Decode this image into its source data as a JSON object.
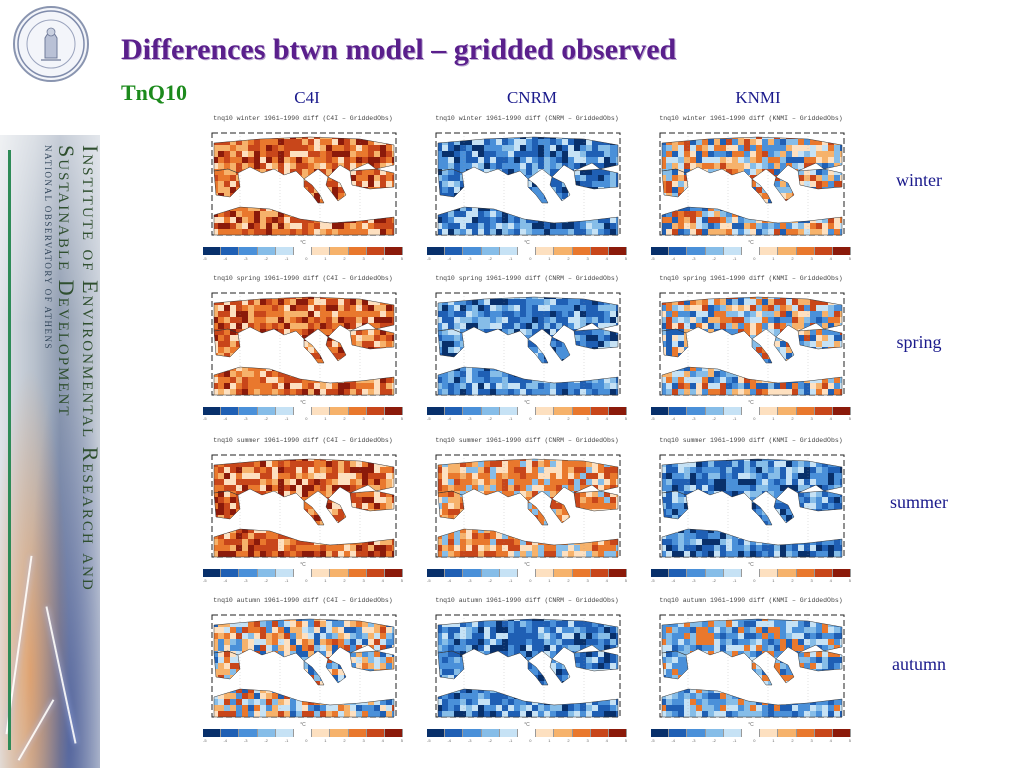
{
  "title": "Differences btwn model – gridded observed",
  "subtitle": "TnQ10",
  "sidebar": {
    "line1": "Institute of Environmental Research and",
    "line2": "Sustainable Development",
    "line3": "NATIONAL OBSERVATORY OF ATHENS"
  },
  "logo": {
    "icon": "observatory-seal-icon",
    "text": "NATIONAL OBSERVATORY OF ATHENS"
  },
  "columns": [
    "C4I",
    "CNRM",
    "KNMI"
  ],
  "rows": [
    "winter",
    "spring",
    "summer",
    "autumn"
  ],
  "panels": {
    "winter": [
      "tnq10 winter 1961–1990 diff (C4I – GriddedObs)",
      "tnq10 winter 1961–1990 diff (CNRM – GriddedObs)",
      "tnq10 winter 1961–1990 diff (KNMI – GriddedObs)"
    ],
    "spring": [
      "tnq10 spring 1961–1990 diff (C4I – GriddedObs)",
      "tnq10 spring 1961–1990 diff (CNRM – GriddedObs)",
      "tnq10 spring 1961–1990 diff (KNMI – GriddedObs)"
    ],
    "summer": [
      "tnq10 summer 1961–1990 diff (C4I – GriddedObs)",
      "tnq10 summer 1961–1990 diff (CNRM – GriddedObs)",
      "tnq10 summer 1961–1990 diff (KNMI – GriddedObs)"
    ],
    "autumn": [
      "tnq10 autumn 1961–1990 diff (C4I – GriddedObs)",
      "tnq10 autumn 1961–1990 diff (CNRM – GriddedObs)",
      "tnq10 autumn 1961–1990 diff (KNMI – GriddedObs)"
    ]
  },
  "colorbar": {
    "unit": "°C",
    "colors": [
      "#08306b",
      "#1f5fb4",
      "#4a90d9",
      "#86bde8",
      "#c6e2f5",
      "#ffffff",
      "#fde0c0",
      "#f6b26b",
      "#e9782d",
      "#c8461a",
      "#8b1a0a"
    ],
    "ticks": [
      "-5",
      "-4",
      "-3",
      "-2",
      "-1",
      "0",
      "1",
      "2",
      "3",
      "4",
      "5"
    ]
  },
  "panel_tone": {
    "winter": [
      "warm",
      "cool",
      "mixed"
    ],
    "spring": [
      "warm",
      "cool",
      "mixed"
    ],
    "summer": [
      "warm",
      "mixed-warm",
      "cool"
    ],
    "autumn": [
      "mixed",
      "cool",
      "mixed-cool"
    ]
  }
}
